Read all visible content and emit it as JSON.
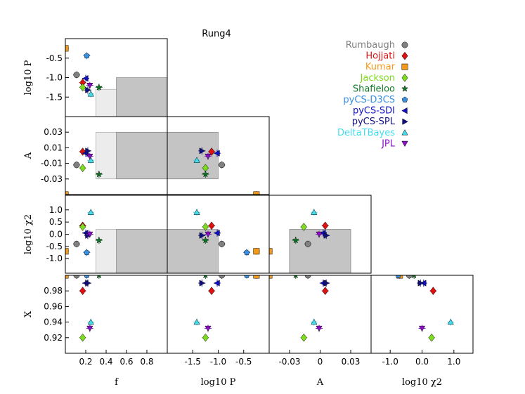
{
  "chart_data": {
    "type": "scatter",
    "title": "Rung4",
    "variables": [
      {
        "key": "f",
        "label": "f",
        "range": [
          0,
          1
        ],
        "ticks": [
          0.2,
          0.4,
          0.6,
          0.8
        ],
        "tick_labels": [
          "0.2",
          "0.4",
          "0.6",
          "0.8"
        ]
      },
      {
        "key": "logP",
        "label": "log10 P",
        "range": [
          -2,
          0
        ],
        "ticks": [
          -1.5,
          -1.0,
          -0.5
        ],
        "tick_labels": [
          "-1.5",
          "-1.0",
          "-0.5"
        ]
      },
      {
        "key": "A",
        "label": "A",
        "range": [
          -0.05,
          0.05
        ],
        "ticks": [
          -0.03,
          -0.01,
          0.01,
          0.03
        ],
        "tick_labels": [
          "-0.03",
          "-0.01",
          "0.01",
          "0.03"
        ]
      },
      {
        "key": "logChi2",
        "label": "log10 χ2",
        "range": [
          -1.6,
          1.6
        ],
        "ticks": [
          -1.0,
          -0.5,
          0.0,
          0.5,
          1.0
        ],
        "tick_labels": [
          "-1.0",
          "-0.5",
          "0.0",
          "0.5",
          "1.0"
        ]
      },
      {
        "key": "X",
        "label": "X",
        "range": [
          0.9,
          1.0
        ],
        "ticks": [
          0.92,
          0.94,
          0.96,
          0.98
        ],
        "tick_labels": [
          "0.92",
          "0.94",
          "0.96",
          "0.98"
        ]
      }
    ],
    "bottom_tick_labels": {
      "f": [
        "0.2",
        "0.4",
        "0.6",
        "0.8"
      ],
      "logP": [
        "-1.5",
        "-1.0",
        "-0.5"
      ],
      "A": [
        "-0.03",
        "0",
        "0.03"
      ],
      "logChi2": [
        "-1.0",
        "0.0",
        "1.0"
      ]
    },
    "bottom_tick_values": {
      "f": [
        0.2,
        0.4,
        0.6,
        0.8
      ],
      "logP": [
        -1.5,
        -1.0,
        -0.5
      ],
      "A": [
        -0.03,
        0,
        0.03
      ],
      "logChi2": [
        -1.0,
        0.0,
        1.0
      ]
    },
    "target_region": {
      "outer": {
        "f": [
          0.3,
          1.0
        ],
        "logP": [
          -2.0,
          -1.3
        ],
        "A": [
          -0.03,
          0.03
        ],
        "logChi2": [
          -1.6,
          0.2
        ]
      },
      "inner": {
        "f": [
          0.5,
          1.0
        ],
        "logP": [
          -2.0,
          -1.0
        ],
        "A": [
          -0.03,
          0.03
        ],
        "logChi2": [
          -1.6,
          0.2
        ]
      }
    },
    "legend_position": "top-right",
    "series": [
      {
        "name": "Rumbaugh",
        "color": "#808080",
        "marker": "circle",
        "f": 0.11,
        "logP": -0.93,
        "A": -0.012,
        "logChi2": -0.4,
        "X": 1.0
      },
      {
        "name": "Hojjati",
        "color": "#dd1111",
        "marker": "diamond",
        "f": 0.17,
        "logP": -1.13,
        "A": 0.005,
        "logChi2": 0.35,
        "X": 0.98
      },
      {
        "name": "Kumar",
        "color": "#f59b1b",
        "marker": "square",
        "f": 0.0,
        "logP": -0.25,
        "A": -0.05,
        "logChi2": -0.7,
        "X": 1.0
      },
      {
        "name": "Jackson",
        "color": "#7ddc1f",
        "marker": "diamond",
        "f": 0.17,
        "logP": -1.25,
        "A": -0.016,
        "logChi2": 0.3,
        "X": 0.92
      },
      {
        "name": "Shafieloo",
        "color": "#0f7a24",
        "marker": "star",
        "f": 0.33,
        "logP": -1.25,
        "A": -0.024,
        "logChi2": -0.25,
        "X": 1.0
      },
      {
        "name": "pyCS-D3CS",
        "color": "#3a8fe0",
        "marker": "pentagon",
        "f": 0.21,
        "logP": -0.44,
        "A": -0.06,
        "logChi2": -0.75,
        "X": 1.0
      },
      {
        "name": "pyCS-SDI",
        "color": "#1010c8",
        "marker": "tri-left",
        "f": 0.2,
        "logP": -1.02,
        "A": 0.003,
        "logChi2": 0.05,
        "X": 0.99
      },
      {
        "name": "pyCS-SPL",
        "color": "#101080",
        "marker": "tri-right",
        "f": 0.22,
        "logP": -1.32,
        "A": 0.006,
        "logChi2": -0.05,
        "X": 0.99
      },
      {
        "name": "DeltaTBayes",
        "color": "#44ddee",
        "marker": "tri-up",
        "f": 0.25,
        "logP": -1.42,
        "A": -0.006,
        "logChi2": 0.9,
        "X": 0.94
      },
      {
        "name": "JPL",
        "color": "#8a10c8",
        "marker": "tri-down",
        "f": 0.24,
        "logP": -1.2,
        "A": -0.001,
        "logChi2": 0.0,
        "X": 0.932
      }
    ]
  }
}
